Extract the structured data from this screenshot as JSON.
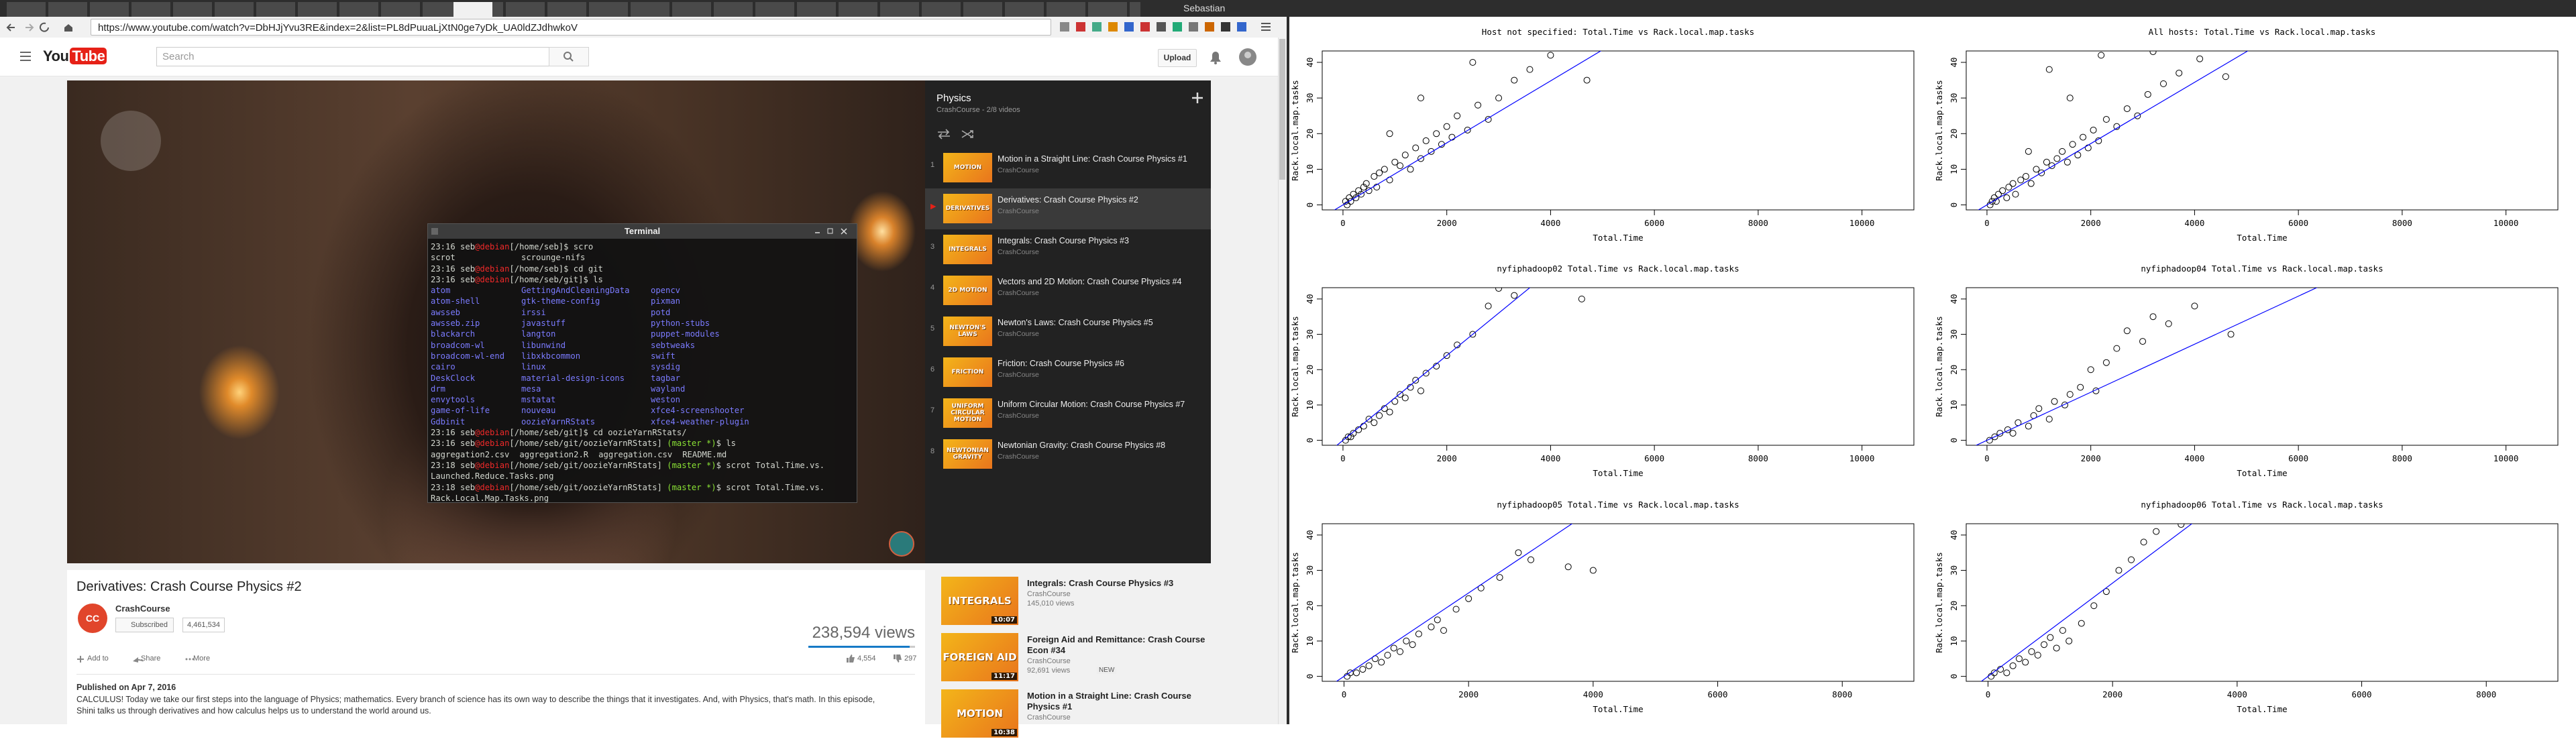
{
  "browser": {
    "user": "Sebastian",
    "url": "https://www.youtube.com/watch?v=DbHJjYvu3RE&index=2&list=PL8dPuuaLjXtN0ge7yDk_UA0ldZJdhwkoV"
  },
  "youtube": {
    "logo_you": "You",
    "logo_tube": "Tube",
    "search_placeholder": "Search",
    "upload": "Upload",
    "video": {
      "title": "Derivatives: Crash Course Physics #2",
      "avatar": "CC",
      "channel": "CrashCourse",
      "subscribe": "Subscribed",
      "subscribers": "4,461,534",
      "views": "238,594 views",
      "add_to": "Add to",
      "share": "Share",
      "more": "More",
      "likes": "4,554",
      "dislikes": "297",
      "published": "Published on Apr 7, 2016",
      "description": [
        "CALCULUS! Today we take our first steps into the language of Physics; mathematics. Every branch of science has its own way to describe the things that it investigates. And, with Physics, that's math. In this episode,",
        "Shini talks us through derivatives and how calculus helps us to understand the world around us."
      ]
    },
    "playlist": {
      "title": "Physics",
      "subtitle": "CrashCourse - 2/8 videos",
      "items": [
        {
          "index": "1",
          "thumb": "MOTION",
          "title": "Motion in a Straight Line: Crash Course Physics #1",
          "channel": "CrashCourse"
        },
        {
          "index": "▶",
          "thumb": "DERIVATIVES",
          "title": "Derivatives: Crash Course Physics #2",
          "channel": "CrashCourse",
          "current": true
        },
        {
          "index": "3",
          "thumb": "INTEGRALS",
          "title": "Integrals: Crash Course Physics #3",
          "channel": "CrashCourse"
        },
        {
          "index": "4",
          "thumb": "2D MOTION",
          "title": "Vectors and 2D Motion: Crash Course Physics #4",
          "channel": "CrashCourse"
        },
        {
          "index": "5",
          "thumb": "NEWTON'S LAWS",
          "title": "Newton's Laws: Crash Course Physics #5",
          "channel": "CrashCourse"
        },
        {
          "index": "6",
          "thumb": "FRICTION",
          "title": "Friction: Crash Course Physics #6",
          "channel": "CrashCourse"
        },
        {
          "index": "7",
          "thumb": "UNIFORM CIRCULAR MOTION",
          "title": "Uniform Circular Motion: Crash Course Physics #7",
          "channel": "CrashCourse"
        },
        {
          "index": "8",
          "thumb": "NEWTONIAN GRAVITY",
          "title": "Newtonian Gravity: Crash Course Physics #8",
          "channel": "CrashCourse"
        }
      ]
    },
    "related": [
      {
        "thumb": "INTEGRALS",
        "duration": "10:07",
        "title": "Integrals: Crash Course Physics #3",
        "channel": "CrashCourse",
        "views": "145,010 views"
      },
      {
        "thumb": "FOREIGN AID",
        "duration": "11:17",
        "title": "Foreign Aid and Remittance: Crash Course Econ #34",
        "channel": "CrashCourse",
        "views": "92,691 views",
        "badge": "NEW"
      },
      {
        "thumb": "MOTION",
        "duration": "10:38",
        "title": "Motion in a Straight Line: Crash Course Physics #1",
        "channel": "CrashCourse"
      }
    ]
  },
  "terminal": {
    "title": "Terminal",
    "lines": [
      [
        {
          "text": "23:16 seb",
          "color": "#d3d7cf"
        },
        {
          "text": "@debian",
          "color": "#ef2929"
        },
        {
          "text": "[/home/seb]$ scro",
          "color": "#d3d7cf"
        }
      ],
      {
        "columns": [
          "scrot",
          "scrounge-nifs"
        ],
        "color": "#d3d7cf"
      },
      [
        {
          "text": "23:16 seb",
          "color": "#d3d7cf"
        },
        {
          "text": "@debian",
          "color": "#ef2929"
        },
        {
          "text": "[/home/seb]$ cd git",
          "color": "#d3d7cf"
        }
      ],
      [
        {
          "text": "23:16 seb",
          "color": "#d3d7cf"
        },
        {
          "text": "@debian",
          "color": "#ef2929"
        },
        {
          "text": "[/home/seb/git]$ ls",
          "color": "#d3d7cf"
        }
      ],
      {
        "columns": [
          "atom",
          "GettingAndCleaningData",
          "opencv"
        ],
        "color": "#7b7bff"
      },
      {
        "columns": [
          "atom-shell",
          "gtk-theme-config",
          "pixman"
        ],
        "color": "#7b7bff"
      },
      {
        "columns": [
          "awsseb",
          "irssi",
          "potd"
        ],
        "color": "#7b7bff"
      },
      {
        "columns": [
          "awsseb.zip",
          "javastuff",
          "python-stubs"
        ],
        "color": "#7b7bff"
      },
      {
        "columns": [
          "blackarch",
          "langton",
          "puppet-modules"
        ],
        "color": "#7b7bff"
      },
      {
        "columns": [
          "broadcom-wl",
          "libunwind",
          "sebtweaks"
        ],
        "color": "#7b7bff"
      },
      {
        "columns": [
          "broadcom-wl-end",
          "libxkbcommon",
          "swift"
        ],
        "color": "#7b7bff"
      },
      {
        "columns": [
          "cairo",
          "linux",
          "sysdig"
        ],
        "color": "#7b7bff"
      },
      {
        "columns": [
          "DeskClock",
          "material-design-icons",
          "tagbar"
        ],
        "color": "#7b7bff"
      },
      {
        "columns": [
          "drm",
          "mesa",
          "wayland"
        ],
        "color": "#7b7bff"
      },
      {
        "columns": [
          "envytools",
          "mstatat",
          "weston"
        ],
        "color": "#7b7bff"
      },
      {
        "columns": [
          "game-of-life",
          "nouveau",
          "xfce4-screenshooter"
        ],
        "color": "#7b7bff"
      },
      {
        "columns": [
          "Gdbinit",
          "oozieYarnRStats",
          "xfce4-weather-plugin"
        ],
        "color": "#7b7bff"
      },
      [
        {
          "text": "23:16 seb",
          "color": "#d3d7cf"
        },
        {
          "text": "@debian",
          "color": "#ef2929"
        },
        {
          "text": "[/home/seb/git]$ cd oozieYarnRStats/",
          "color": "#d3d7cf"
        }
      ],
      [
        {
          "text": "23:16 seb",
          "color": "#d3d7cf"
        },
        {
          "text": "@debian",
          "color": "#ef2929"
        },
        {
          "text": "[/home/seb/git/oozieYarnRStats] ",
          "color": "#d3d7cf"
        },
        {
          "text": "(master *)",
          "color": "#8ae234"
        },
        {
          "text": "$ ls",
          "color": "#d3d7cf"
        }
      ],
      {
        "columns": [
          "aggregation2.csv",
          "aggregation2.R",
          "aggregation.csv",
          "README.md"
        ],
        "color": "#d3d7cf"
      },
      [
        {
          "text": "23:18 seb",
          "color": "#d3d7cf"
        },
        {
          "text": "@debian",
          "color": "#ef2929"
        },
        {
          "text": "[/home/seb/git/oozieYarnRStats] ",
          "color": "#d3d7cf"
        },
        {
          "text": "(master *)",
          "color": "#8ae234"
        },
        {
          "text": "$ scrot Total.Time.vs.",
          "color": "#d3d7cf"
        }
      ],
      [
        {
          "text": "Launched.Reduce.Tasks.png",
          "color": "#d3d7cf"
        }
      ],
      [
        {
          "text": "23:18 seb",
          "color": "#d3d7cf"
        },
        {
          "text": "@debian",
          "color": "#ef2929"
        },
        {
          "text": "[/home/seb/git/oozieYarnRStats] ",
          "color": "#d3d7cf"
        },
        {
          "text": "(master *)",
          "color": "#8ae234"
        },
        {
          "text": "$ scrot Total.Time.vs.",
          "color": "#d3d7cf"
        }
      ],
      [
        {
          "text": "Rack.Local.Map.Tasks.png",
          "color": "#d3d7cf"
        }
      ]
    ]
  },
  "chart_data": [
    {
      "type": "scatter",
      "title": "Host not specified: Total.Time vs Rack.local.map.tasks",
      "xlabel": "Total.Time",
      "ylabel": "Rack.local.map.tasks",
      "color": "#000000",
      "marker": "open-circle",
      "x": [
        50,
        80,
        120,
        150,
        200,
        250,
        300,
        350,
        400,
        450,
        500,
        600,
        650,
        700,
        800,
        900,
        1000,
        1100,
        1200,
        1300,
        1400,
        1500,
        1600,
        1700,
        1800,
        1900,
        2000,
        2100,
        2200,
        2400,
        2600,
        2800,
        3000,
        3300,
        3600,
        4000,
        4700,
        1500,
        2500,
        900
      ],
      "values": [
        1,
        0,
        2,
        1,
        3,
        2,
        4,
        3,
        5,
        6,
        4,
        8,
        5,
        9,
        10,
        7,
        12,
        11,
        14,
        10,
        16,
        13,
        18,
        15,
        20,
        17,
        22,
        19,
        25,
        21,
        28,
        24,
        30,
        35,
        38,
        42,
        35,
        30,
        40,
        20
      ],
      "abline": {
        "intercept": 0,
        "slope": 0.0087,
        "color": "#0000ff"
      },
      "xlim": [
        -400,
        11000
      ],
      "ylim": [
        -1.4,
        43.2
      ],
      "xticks": [
        0,
        2000,
        4000,
        6000,
        8000,
        10000
      ],
      "yticks": [
        0,
        10,
        20,
        30,
        40
      ]
    },
    {
      "type": "scatter",
      "title": "All hosts: Total.Time vs Rack.local.map.tasks",
      "xlabel": "Total.Time",
      "ylabel": "Rack.local.map.tasks",
      "color": "#000000",
      "marker": "open-circle",
      "x": [
        60,
        100,
        140,
        180,
        220,
        300,
        380,
        420,
        500,
        550,
        650,
        750,
        850,
        950,
        1050,
        1150,
        1250,
        1350,
        1450,
        1550,
        1650,
        1750,
        1850,
        1950,
        2050,
        2150,
        2300,
        2500,
        2700,
        2900,
        3100,
        3400,
        3700,
        4100,
        4600,
        1200,
        2200,
        3200,
        800,
        1600
      ],
      "values": [
        0,
        1,
        2,
        1,
        3,
        4,
        2,
        5,
        6,
        3,
        7,
        8,
        6,
        10,
        9,
        12,
        11,
        13,
        15,
        12,
        17,
        14,
        19,
        16,
        21,
        18,
        24,
        22,
        27,
        25,
        31,
        34,
        37,
        41,
        36,
        38,
        42,
        43,
        15,
        30
      ],
      "abline": {
        "intercept": 0,
        "slope": 0.0086,
        "color": "#0000ff"
      },
      "xlim": [
        -400,
        11000
      ],
      "ylim": [
        -1.4,
        43.2
      ],
      "xticks": [
        0,
        2000,
        4000,
        6000,
        8000,
        10000
      ],
      "yticks": [
        0,
        10,
        20,
        30,
        40
      ]
    },
    {
      "type": "scatter",
      "title": "nyfiphadoop02 Total.Time vs Rack.local.map.tasks",
      "xlabel": "Total.Time",
      "ylabel": "Rack.local.map.tasks",
      "color": "#000000",
      "marker": "open-circle",
      "x": [
        50,
        100,
        150,
        200,
        300,
        400,
        500,
        600,
        700,
        800,
        900,
        1000,
        1100,
        1200,
        1300,
        1400,
        1500,
        1600,
        1800,
        2000,
        2200,
        2500,
        2800,
        3000,
        3300,
        4600
      ],
      "values": [
        0,
        1,
        1,
        2,
        3,
        4,
        6,
        5,
        7,
        9,
        8,
        11,
        13,
        12,
        15,
        17,
        14,
        19,
        21,
        24,
        27,
        30,
        38,
        43,
        41,
        40
      ],
      "abline": {
        "intercept": 0,
        "slope": 0.012,
        "color": "#0000ff"
      },
      "xlim": [
        -400,
        11000
      ],
      "ylim": [
        -1.4,
        43.2
      ],
      "xticks": [
        0,
        2000,
        4000,
        6000,
        8000,
        10000
      ],
      "yticks": [
        0,
        10,
        20,
        30,
        40
      ]
    },
    {
      "type": "scatter",
      "title": "nyfiphadoop04 Total.Time vs Rack.local.map.tasks",
      "xlabel": "Total.Time",
      "ylabel": "Rack.local.map.tasks",
      "color": "#000000",
      "marker": "open-circle",
      "x": [
        50,
        150,
        250,
        400,
        500,
        600,
        800,
        900,
        1000,
        1200,
        1300,
        1500,
        1600,
        1800,
        2000,
        2100,
        2300,
        2500,
        2700,
        3000,
        3200,
        3500,
        4000,
        4700
      ],
      "values": [
        0,
        1,
        2,
        3,
        2,
        5,
        4,
        7,
        9,
        6,
        11,
        10,
        13,
        15,
        20,
        14,
        22,
        26,
        31,
        28,
        35,
        33,
        38,
        30
      ],
      "abline": {
        "intercept": 0,
        "slope": 0.0068,
        "color": "#0000ff"
      },
      "xlim": [
        -400,
        11000
      ],
      "ylim": [
        -1.4,
        43.2
      ],
      "xticks": [
        0,
        2000,
        4000,
        6000,
        8000,
        10000
      ],
      "yticks": [
        0,
        10,
        20,
        30,
        40
      ]
    },
    {
      "type": "scatter",
      "title": "nyfiphadoop05 Total.Time vs Rack.local.map.tasks",
      "xlabel": "Total.Time",
      "ylabel": "Rack.local.map.tasks",
      "color": "#000000",
      "marker": "open-circle",
      "x": [
        50,
        100,
        200,
        300,
        400,
        500,
        600,
        700,
        800,
        900,
        1000,
        1100,
        1200,
        1400,
        1500,
        1600,
        1800,
        2000,
        2200,
        2500,
        2800,
        3000,
        3600,
        4000
      ],
      "values": [
        0,
        1,
        1,
        2,
        3,
        5,
        4,
        6,
        8,
        7,
        10,
        9,
        12,
        14,
        16,
        13,
        19,
        22,
        25,
        28,
        35,
        33,
        31,
        30
      ],
      "abline": {
        "intercept": 0,
        "slope": 0.0118,
        "color": "#0000ff"
      },
      "xlim": [
        -350,
        9150
      ],
      "ylim": [
        -1.4,
        43.2
      ],
      "xticks": [
        0,
        2000,
        4000,
        6000,
        8000
      ],
      "yticks": [
        0,
        10,
        20,
        30,
        40
      ]
    },
    {
      "type": "scatter",
      "title": "nyfiphadoop06 Total.Time vs Rack.local.map.tasks",
      "xlabel": "Total.Time",
      "ylabel": "Rack.local.map.tasks",
      "color": "#000000",
      "marker": "open-circle",
      "x": [
        50,
        100,
        200,
        300,
        400,
        500,
        600,
        700,
        800,
        900,
        1000,
        1100,
        1200,
        1300,
        1500,
        1700,
        1900,
        2100,
        2300,
        2500,
        2700,
        3100
      ],
      "values": [
        0,
        1,
        2,
        1,
        3,
        5,
        4,
        7,
        6,
        9,
        11,
        8,
        13,
        10,
        15,
        20,
        24,
        30,
        33,
        38,
        41,
        43
      ],
      "abline": {
        "intercept": 0,
        "slope": 0.0132,
        "color": "#0000ff"
      },
      "xlim": [
        -350,
        9150
      ],
      "ylim": [
        -1.4,
        43.2
      ],
      "xticks": [
        0,
        2000,
        4000,
        6000,
        8000
      ],
      "yticks": [
        0,
        10,
        20,
        30,
        40
      ]
    }
  ]
}
